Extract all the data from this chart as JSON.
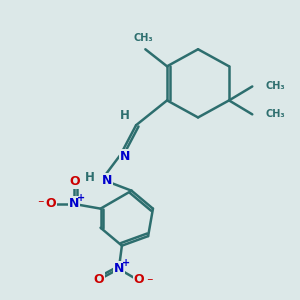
{
  "bg_color": "#dce8e8",
  "bond_color": "#2d6e6e",
  "bond_width": 1.8,
  "N_color": "#0000cc",
  "O_color": "#cc0000",
  "figsize": [
    3.0,
    3.0
  ],
  "dpi": 100,
  "xlim": [
    0,
    10
  ],
  "ylim": [
    0,
    10
  ]
}
